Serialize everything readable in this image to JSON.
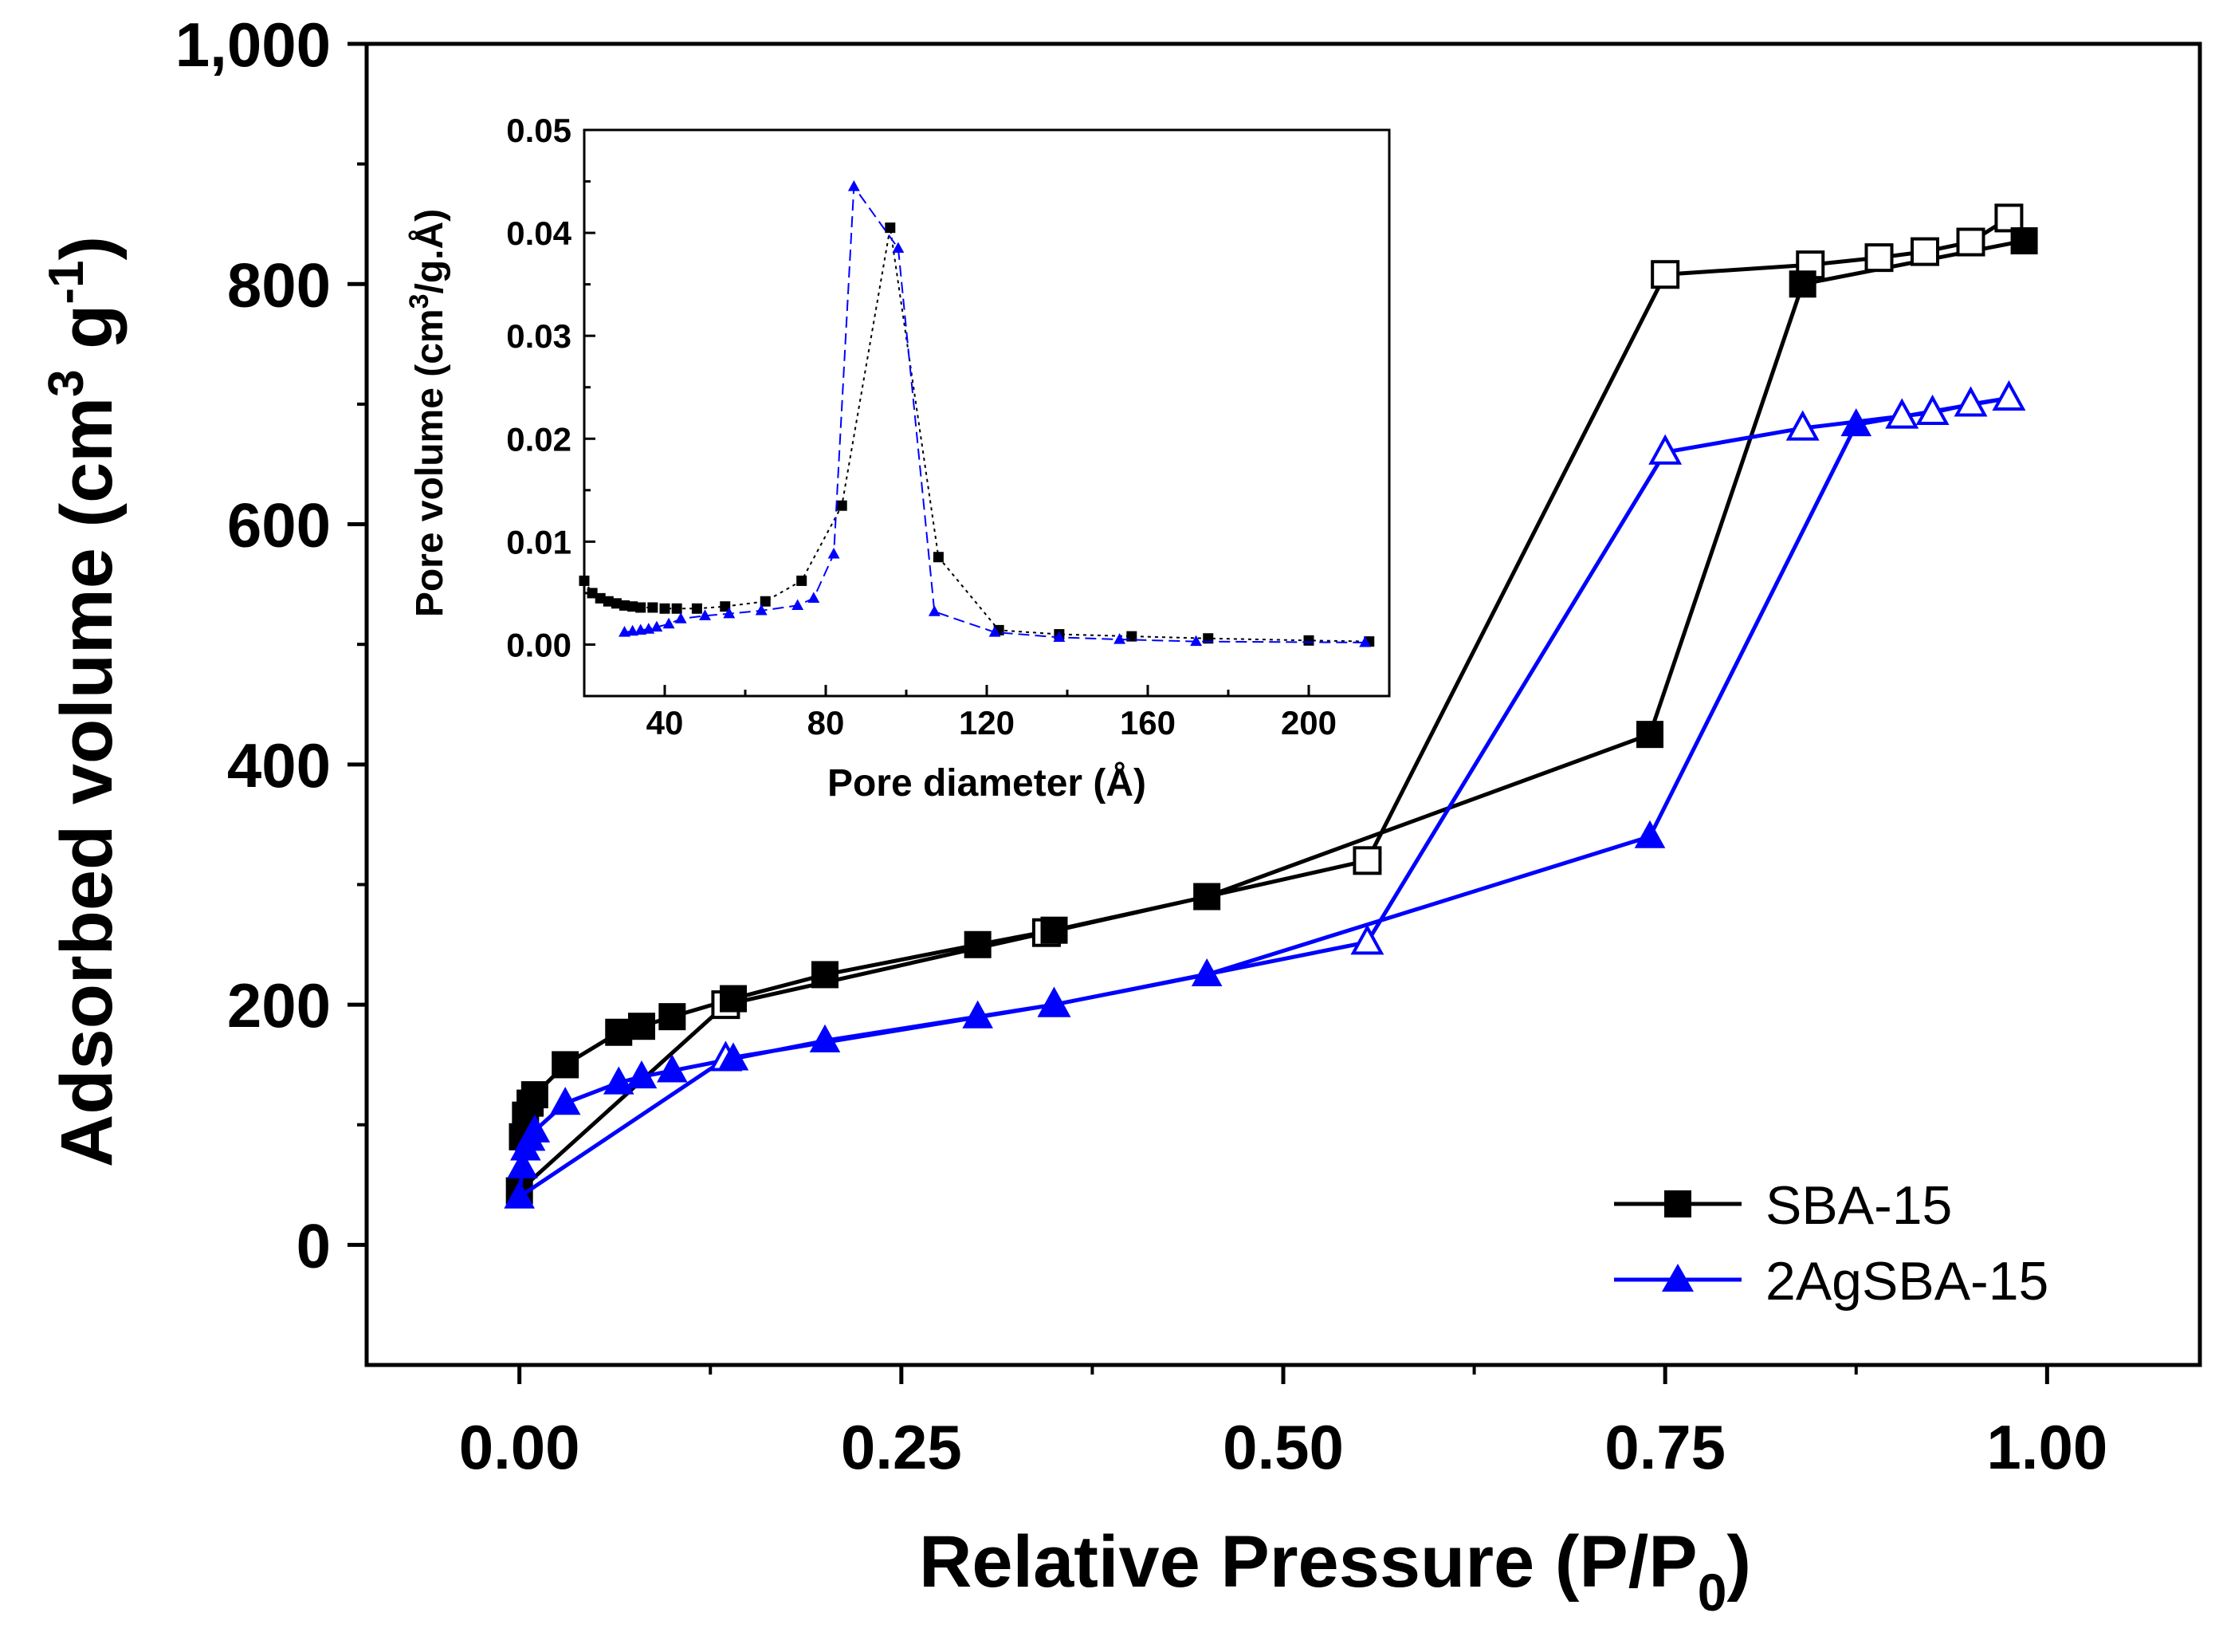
{
  "chart_data": [
    {
      "type": "line",
      "name": "main",
      "xlabel": "Relative Pressure (P/P",
      "xlabel_sub": "0",
      "xlabel_end": ")",
      "ylabel": "Adsorbed volume (cm",
      "ylabel_sup1": "3",
      "ylabel_mid": " g",
      "ylabel_sup2": "-1",
      "ylabel_end": ")",
      "xlim": [
        -0.1,
        1.1
      ],
      "ylim": [
        -100,
        1000
      ],
      "xticks": [
        0.0,
        0.25,
        0.5,
        0.75,
        1.0
      ],
      "xtick_labels": [
        "0.00",
        "0.25",
        "0.50",
        "0.75",
        "1.00"
      ],
      "yticks": [
        0,
        200,
        400,
        600,
        800,
        1000
      ],
      "ytick_labels": [
        "0",
        "200",
        "400",
        "600",
        "800",
        "1,000"
      ],
      "legend_position": "bottom-right",
      "series": [
        {
          "name": "SBA-15",
          "color": "#000000",
          "marker": "square",
          "adsorption": {
            "x": [
              0.0,
              0.002,
              0.004,
              0.007,
              0.01,
              0.03,
              0.065,
              0.08,
              0.1,
              0.14,
              0.2,
              0.3,
              0.35,
              0.45,
              0.74,
              0.84,
              0.985
            ],
            "y": [
              45,
              90,
              108,
              118,
              125,
              150,
              177,
              182,
              190,
              205,
              225,
              250,
              262,
              290,
              425,
              800,
              836
            ]
          },
          "desorption": {
            "x": [
              0.975,
              0.95,
              0.92,
              0.89,
              0.845,
              0.75,
              0.555,
              0.345,
              0.135
            ],
            "y": [
              855,
              835,
              827,
              822,
              816,
              808,
              320,
              260,
              200
            ]
          }
        },
        {
          "name": "2AgSBA-15",
          "color": "#0000ff",
          "marker": "triangle",
          "adsorption": {
            "x": [
              0.0,
              0.002,
              0.004,
              0.007,
              0.01,
              0.03,
              0.065,
              0.08,
              0.1,
              0.14,
              0.2,
              0.3,
              0.35,
              0.45,
              0.74,
              0.875
            ],
            "y": [
              40,
              65,
              80,
              88,
              95,
              118,
              135,
              140,
              145,
              155,
              170,
              190,
              200,
              225,
              340,
              683
            ]
          },
          "desorption": {
            "x": [
              0.975,
              0.95,
              0.925,
              0.905,
              0.84,
              0.75,
              0.555,
              0.35,
              0.135
            ],
            "y": [
              705,
              700,
              693,
              690,
              680,
              660,
              252,
              200,
              155
            ]
          }
        }
      ]
    },
    {
      "type": "line",
      "name": "inset",
      "xlabel": "Pore diameter (Å)",
      "ylabel": "Pore volume (cm",
      "ylabel_sup": "3",
      "ylabel_end": "/g.Å)",
      "xlim": [
        20,
        220
      ],
      "ylim": [
        -0.005,
        0.05
      ],
      "xticks": [
        40,
        80,
        120,
        160,
        200
      ],
      "xtick_labels": [
        "40",
        "80",
        "120",
        "160",
        "200"
      ],
      "yticks": [
        0.0,
        0.01,
        0.02,
        0.03,
        0.04,
        0.05
      ],
      "ytick_labels": [
        "0.00",
        "0.01",
        "0.02",
        "0.03",
        "0.04",
        "0.05"
      ],
      "series": [
        {
          "name": "SBA-15",
          "color": "#000000",
          "marker": "square",
          "x": [
            20,
            22,
            24,
            26,
            28,
            30,
            32,
            34,
            37,
            40,
            43,
            48,
            55,
            65,
            74,
            84,
            96,
            108,
            123,
            138,
            156,
            175,
            200,
            215
          ],
          "y": [
            0.0062,
            0.005,
            0.0045,
            0.0042,
            0.004,
            0.0038,
            0.0037,
            0.0036,
            0.0036,
            0.0035,
            0.0035,
            0.0035,
            0.0037,
            0.0042,
            0.0062,
            0.0135,
            0.0405,
            0.0085,
            0.0014,
            0.001,
            0.0008,
            0.0006,
            0.0004,
            0.0003
          ]
        },
        {
          "name": "2AgSBA-15",
          "color": "#0000ff",
          "marker": "triangle",
          "x": [
            30,
            32,
            34,
            36,
            38,
            41,
            44,
            50,
            56,
            64,
            73,
            77,
            82,
            87,
            98,
            107,
            122,
            138,
            153,
            172,
            214
          ],
          "y": [
            0.0012,
            0.0013,
            0.0014,
            0.0015,
            0.0017,
            0.002,
            0.0025,
            0.0028,
            0.003,
            0.0033,
            0.0038,
            0.0045,
            0.0088,
            0.0445,
            0.0385,
            0.0032,
            0.0012,
            0.0007,
            0.0005,
            0.0003,
            0.0002
          ]
        }
      ]
    }
  ],
  "legend": {
    "items": [
      {
        "label": "SBA-15",
        "color": "#000000",
        "marker": "square"
      },
      {
        "label": "2AgSBA-15",
        "color": "#0000ff",
        "marker": "triangle"
      }
    ]
  }
}
